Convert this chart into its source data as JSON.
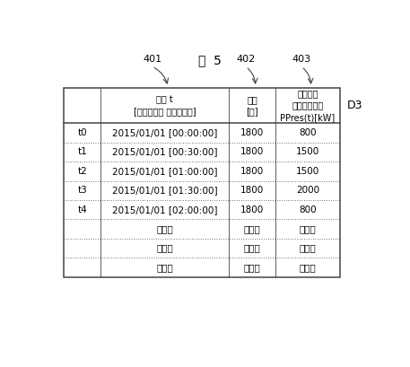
{
  "title": "図  5",
  "label_d3": "D3",
  "col_labels": [
    "401",
    "402",
    "403"
  ],
  "header_texts": [
    "時刻 t\n[年／月／日 時：分：秒]",
    "期間\n[秒]",
    "発電設備\n予備力計画値\nPPres(t)[kW]"
  ],
  "index_col": [
    "t0",
    "t1",
    "t2",
    "t3",
    "t4",
    "",
    "",
    ""
  ],
  "data_rows": [
    [
      "2015/01/01 [00:00:00]",
      "1800",
      "800"
    ],
    [
      "2015/01/01 [00:30:00]",
      "1800",
      "1500"
    ],
    [
      "2015/01/01 [01:00:00]",
      "1800",
      "1500"
    ],
    [
      "2015/01/01 [01:30:00]",
      "1800",
      "2000"
    ],
    [
      "2015/01/01 [02:00:00]",
      "1800",
      "800"
    ],
    [
      "・・・",
      "・・・",
      "・・・"
    ],
    [
      "・・・",
      "・・・",
      "・・・"
    ],
    [
      "・・・",
      "・・・",
      "・・・"
    ]
  ],
  "line_color": "#444444",
  "bg_color": "#ffffff",
  "text_color": "#000000",
  "font_size_title": 10,
  "font_size_label": 8,
  "font_size_header": 7,
  "font_size_body": 7.5
}
